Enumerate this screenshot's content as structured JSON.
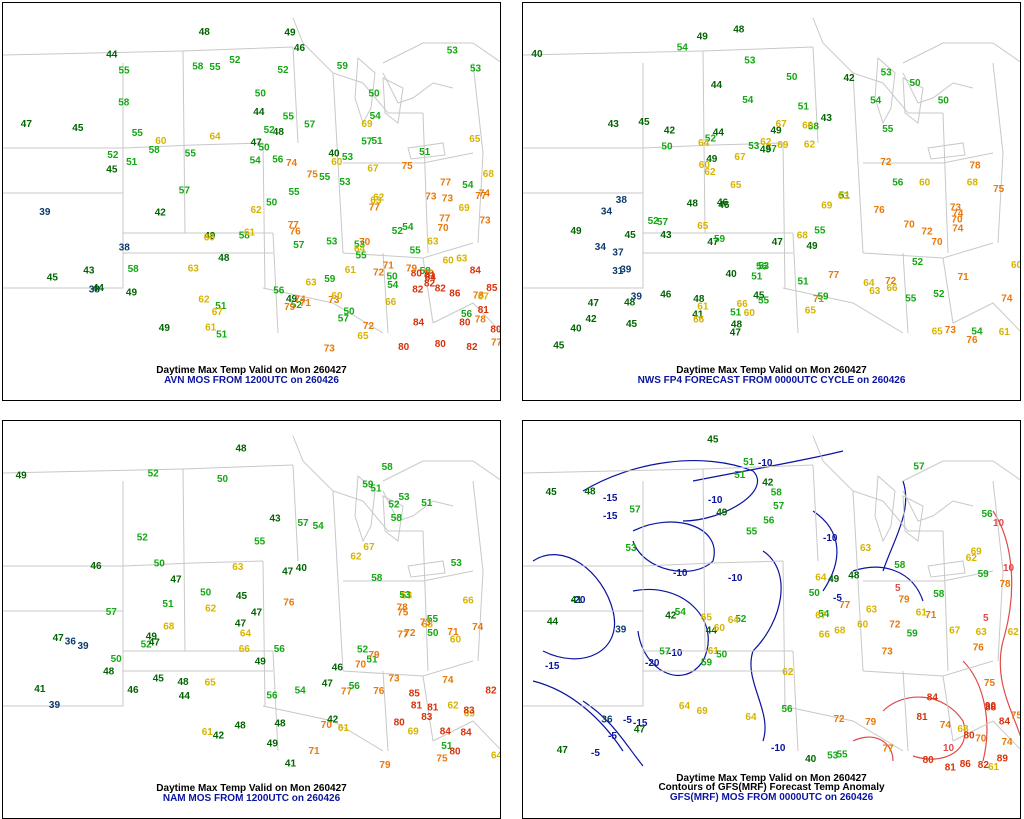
{
  "panels": [
    {
      "id": "p0",
      "title_line1": "Daytime Max Temp Valid on Mon 260427",
      "title_line2": "AVN MOS FROM 1200UTC on 260426",
      "title_line3": "",
      "contours": false
    },
    {
      "id": "p1",
      "title_line1": "Daytime Max Temp Valid on Mon 260427",
      "title_line2": "NWS FP4 FORECAST FROM 0000UTC CYCLE on 260426",
      "title_line3": "",
      "contours": false
    },
    {
      "id": "p2",
      "title_line1": "Daytime Max Temp Valid on Mon 260427",
      "title_line2": "NAM MOS FROM 1200UTC on 260426",
      "title_line3": "",
      "contours": false
    },
    {
      "id": "p3",
      "title_line1": "Daytime Max Temp Valid on Mon 260427",
      "title_line2": "Contours of GFS(MRF) Forecast Temp Anomaly",
      "title_line3": "GFS(MRF) MOS FROM 0000UTC on 260426",
      "contours": true,
      "contour_labels": [
        "-15",
        "-15",
        "-10",
        "-10",
        "-10",
        "-10",
        "-20",
        "-15",
        "-10",
        "-5",
        "-20",
        "-15",
        "-5",
        "-10",
        "-5",
        "-5",
        "10",
        "10",
        "10",
        "-10",
        "5",
        "5"
      ]
    }
  ],
  "color_scale": {
    "dark_blue_lt40": "#0a3a6e",
    "dark_green_40s": "#006400",
    "green_50s": "#12a812",
    "yellow_60s": "#d6b400",
    "orange_70s": "#e8780a",
    "red_80s": "#d8320a",
    "contour_neg": "#0a14a0",
    "contour_pos": "#e04a4a",
    "map_lines": "#c8c8c8"
  },
  "chart_data": {
    "type": "table",
    "title": "Daytime Max Temp Valid on Mon 260427",
    "AVN_MOS": [
      50,
      44,
      43,
      45,
      48,
      38,
      38,
      45,
      42,
      44,
      45,
      47,
      50,
      49,
      47,
      49,
      51,
      46,
      52,
      51,
      50,
      53,
      51,
      54,
      53,
      44,
      57,
      55,
      52,
      50,
      55,
      53,
      50,
      49,
      52,
      56,
      48,
      55,
      54,
      53,
      52,
      55,
      53,
      58,
      59,
      60,
      61,
      63,
      64,
      65,
      58,
      57,
      62,
      54,
      55,
      56,
      49,
      50,
      51,
      58,
      52,
      57,
      51,
      60,
      55,
      61,
      64,
      59,
      66,
      54,
      69,
      62,
      67,
      60,
      72,
      55,
      63,
      73,
      57,
      71,
      55,
      75,
      73,
      60,
      77,
      74,
      79,
      77,
      80,
      58,
      68,
      77,
      79,
      78,
      80,
      76,
      80,
      82,
      78,
      77,
      82,
      86,
      84,
      85,
      81,
      63,
      58,
      55,
      52,
      48,
      49,
      53,
      54,
      57,
      39,
      40,
      60,
      58,
      56,
      61,
      63,
      65,
      67,
      67,
      70,
      72,
      75,
      73,
      77,
      74,
      82,
      80,
      73,
      82,
      84,
      79,
      81,
      63,
      62,
      73,
      69,
      71,
      74,
      77,
      70,
      80,
      84
    ],
    "NWS_FP4": [
      40,
      49,
      51,
      47,
      50,
      48,
      52,
      53,
      55,
      51,
      54,
      53,
      46,
      49,
      45,
      45,
      47,
      49,
      48,
      42,
      40,
      42,
      41,
      37,
      39,
      38,
      42,
      34,
      43,
      40,
      39,
      43,
      44,
      45,
      46,
      47,
      48,
      49,
      50,
      51,
      52,
      53,
      54,
      55,
      56,
      57,
      58,
      59,
      60,
      61,
      62,
      63,
      64,
      65,
      66,
      67,
      68,
      69,
      70,
      71,
      72,
      73,
      74,
      75,
      76,
      77,
      78,
      47,
      45,
      44,
      43,
      46,
      49,
      45,
      48,
      52,
      54,
      50,
      51,
      55,
      56,
      57,
      60,
      60,
      62,
      65,
      65,
      67,
      60,
      66,
      64,
      61,
      62,
      68,
      72,
      70,
      71,
      72,
      73,
      74,
      76,
      69,
      65,
      66,
      70,
      74,
      63,
      60,
      59,
      55,
      54,
      53,
      52,
      50,
      51,
      49,
      31,
      34,
      48
    ],
    "NAM_MOS": [
      52,
      46,
      47,
      47,
      48,
      43,
      40,
      39,
      42,
      49,
      47,
      47,
      50,
      49,
      48,
      51,
      51,
      52,
      53,
      55,
      56,
      57,
      58,
      59,
      60,
      61,
      62,
      63,
      64,
      65,
      66,
      67,
      68,
      69,
      70,
      71,
      72,
      73,
      74,
      75,
      76,
      77,
      78,
      79,
      80,
      81,
      82,
      83,
      84,
      85,
      45,
      46,
      47,
      48,
      49,
      50,
      51,
      52,
      53,
      54,
      55,
      56,
      57,
      42,
      44,
      41,
      45,
      46,
      48,
      49,
      50,
      51,
      47,
      48,
      36,
      39,
      41,
      47,
      50,
      52,
      51,
      54,
      58,
      61,
      62,
      63,
      64,
      66,
      68,
      70,
      69,
      71,
      73,
      74,
      75,
      76,
      77,
      79,
      80,
      81,
      83,
      84,
      50,
      52,
      56,
      58,
      53,
      62
    ],
    "GFS_MOS": [
      51,
      42,
      48,
      42,
      44,
      41,
      45,
      39,
      44,
      49,
      50,
      47,
      51,
      52,
      53,
      55,
      56,
      57,
      58,
      59,
      60,
      61,
      62,
      63,
      64,
      65,
      66,
      67,
      68,
      69,
      70,
      71,
      72,
      73,
      74,
      75,
      76,
      77,
      78,
      79,
      80,
      81,
      82,
      84,
      86,
      88,
      89,
      90,
      53,
      54,
      57,
      58,
      60,
      62,
      63,
      64,
      67,
      68,
      69,
      72,
      74,
      75,
      77,
      79,
      80,
      81,
      84,
      54,
      55,
      56,
      57,
      58,
      59,
      61,
      63,
      64,
      47,
      48,
      49,
      50,
      45,
      36,
      40,
      57,
      56,
      64,
      61,
      59,
      62
    ]
  }
}
